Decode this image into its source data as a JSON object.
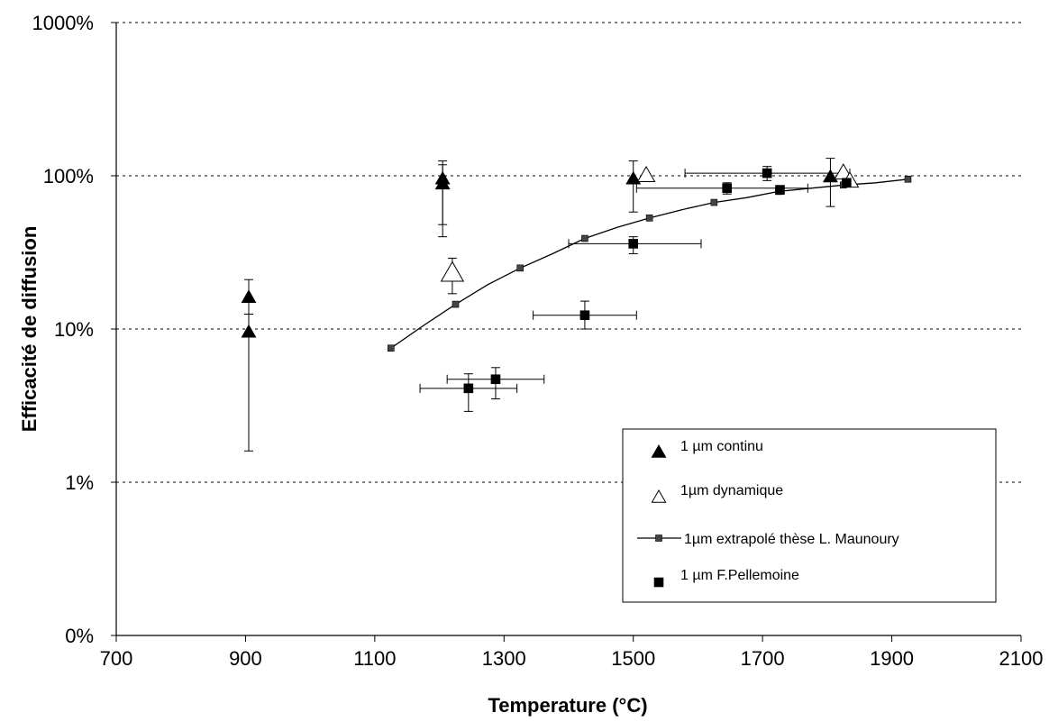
{
  "chart_data": {
    "type": "scatter",
    "title": "",
    "xlabel": "Temperature (°C)",
    "ylabel": "Efficacité de diffusion",
    "x_ticks": [
      700,
      900,
      1100,
      1300,
      1500,
      1700,
      1900,
      2100
    ],
    "x_tick_labels": [
      "700",
      "900",
      "1100",
      "1300",
      "1500",
      "1700",
      "1900",
      "2100"
    ],
    "xlim": [
      700,
      2100
    ],
    "y_scale": "log",
    "y_tick_labels": [
      "0%",
      "1%",
      "10%",
      "100%",
      "1000%"
    ],
    "ylim_decades": [
      -1,
      3
    ],
    "grid": "horizontal dashed",
    "legend_position": "bottom-right",
    "series": [
      {
        "name": "1 µm continu",
        "marker": "filled-triangle",
        "points": [
          {
            "x": 905,
            "y": 16,
            "ylow": 12.5,
            "yhigh": 21
          },
          {
            "x": 905,
            "y": 9.5,
            "ylow": 1.6,
            "yhigh": 12.5
          },
          {
            "x": 1205,
            "y": 95,
            "ylow": 48,
            "yhigh": 125
          },
          {
            "x": 1205,
            "y": 88,
            "ylow": 40,
            "yhigh": 118
          },
          {
            "x": 1500,
            "y": 95,
            "ylow": 58,
            "yhigh": 125
          },
          {
            "x": 1805,
            "y": 98,
            "ylow": 63,
            "yhigh": 130
          }
        ]
      },
      {
        "name": "1µm dynamique",
        "marker": "open-triangle",
        "points": [
          {
            "x": 1220,
            "y": 23,
            "ylow": 17,
            "yhigh": 29
          },
          {
            "x": 1520,
            "y": 100
          },
          {
            "x": 1825,
            "y": 104
          },
          {
            "x": 1835,
            "y": 92
          }
        ]
      },
      {
        "name": "1µm extrapolé thèse L. Maunoury",
        "marker": "small-square-line",
        "x": [
          1125,
          1175,
          1225,
          1275,
          1325,
          1375,
          1425,
          1475,
          1525,
          1575,
          1625,
          1675,
          1725,
          1775,
          1825,
          1875,
          1925
        ],
        "y": [
          7.5,
          10.5,
          14.5,
          19.5,
          25,
          31,
          39,
          46,
          53,
          60,
          67,
          72,
          79,
          83,
          87,
          90,
          95
        ]
      },
      {
        "name": "1 µm F.Pellemoine",
        "marker": "filled-square",
        "points": [
          {
            "x": 1245,
            "y": 4.1,
            "ylow": 2.9,
            "yhigh": 5.1,
            "xlow": 1170,
            "xhigh": 1320
          },
          {
            "x": 1287,
            "y": 4.7,
            "ylow": 3.5,
            "yhigh": 5.6,
            "xlow": 1212,
            "xhigh": 1362
          },
          {
            "x": 1425,
            "y": 12.3,
            "ylow": 10,
            "yhigh": 15.2,
            "xlow": 1345,
            "xhigh": 1505
          },
          {
            "x": 1500,
            "y": 36,
            "ylow": 31,
            "yhigh": 40,
            "xlow": 1400,
            "xhigh": 1605
          },
          {
            "x": 1645,
            "y": 83,
            "ylow": 76,
            "yhigh": 90,
            "xlow": 1505,
            "xhigh": 1770
          },
          {
            "x": 1707,
            "y": 104,
            "ylow": 93,
            "yhigh": 115,
            "xlow": 1580,
            "xhigh": 1835
          },
          {
            "x": 1727,
            "y": 81,
            "ylow": 76,
            "yhigh": 86
          },
          {
            "x": 1830,
            "y": 90,
            "ylow": 85,
            "yhigh": 95
          }
        ]
      }
    ]
  }
}
